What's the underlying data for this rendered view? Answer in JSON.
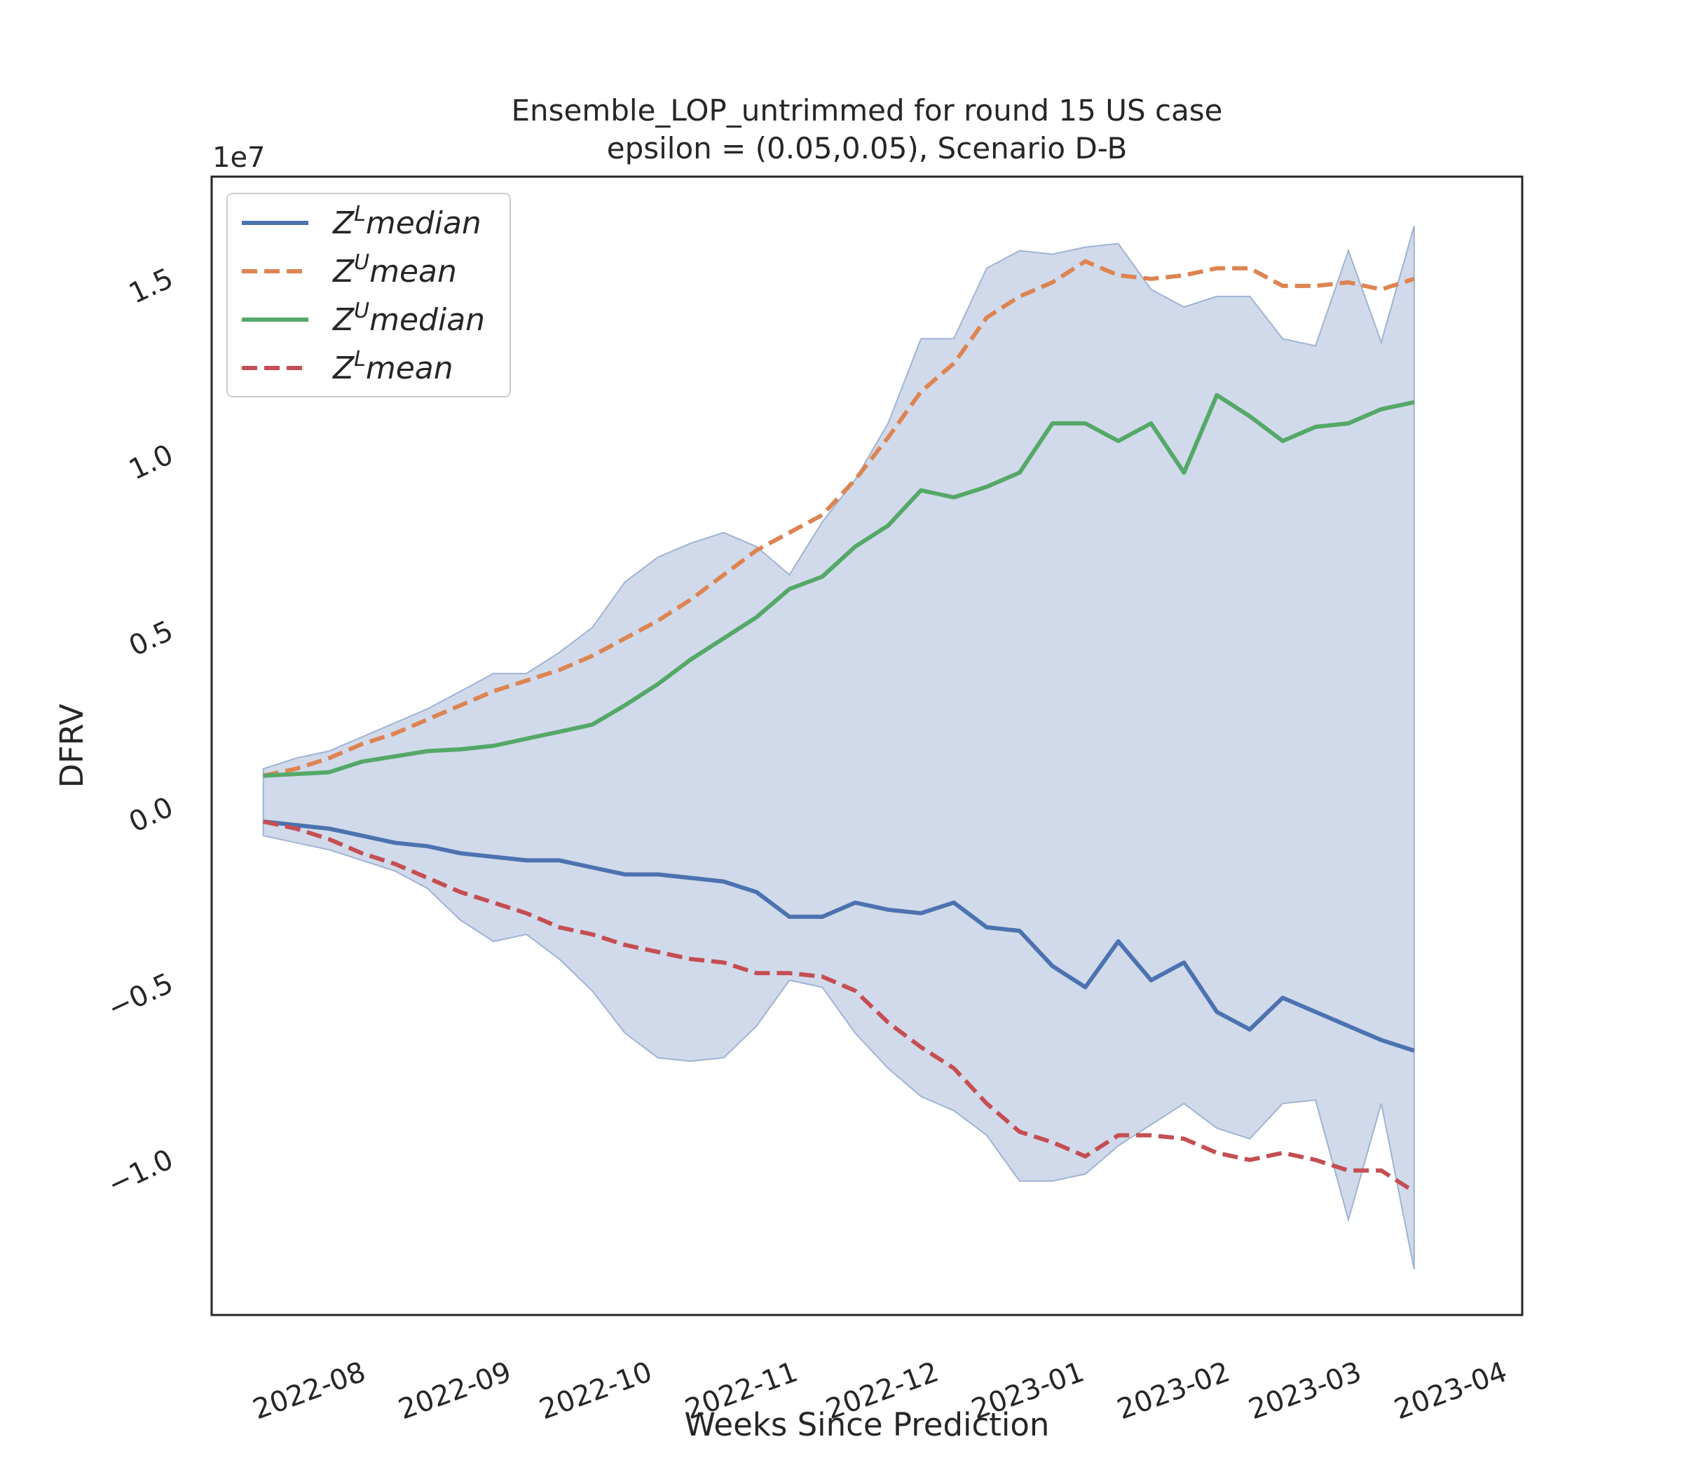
{
  "chart_data": {
    "type": "line",
    "title": "Ensemble_LOP_untrimmed for round 15 US  case",
    "subtitle": "epsilon = (0.05,0.05), Scenario D-B",
    "xlabel": "Weeks Since Prediction",
    "ylabel": "DFRV",
    "y_offset_label": "1e7",
    "x_tick_labels": [
      "2022-08",
      "2022-09",
      "2022-10",
      "2022-11",
      "2022-12",
      "2023-01",
      "2023-02",
      "2023-03",
      "2023-04"
    ],
    "x_ticks": [
      "2022-08-01",
      "2022-09-01",
      "2022-10-01",
      "2022-11-01",
      "2022-12-01",
      "2023-01-01",
      "2023-02-01",
      "2023-03-01",
      "2023-04-01"
    ],
    "y_tick_labels": [
      "−1.0",
      "−0.5",
      "0.0",
      "0.5",
      "1.0",
      "1.5"
    ],
    "y_ticks": [
      -1.0,
      -0.5,
      0.0,
      0.5,
      1.0,
      1.5
    ],
    "xlim": [
      "2022-07-06",
      "2023-04-11"
    ],
    "ylim": [
      -1.45,
      1.78
    ],
    "grid": false,
    "legend_position": "upper-left",
    "x": [
      "2022-07-17",
      "2022-07-24",
      "2022-07-31",
      "2022-08-07",
      "2022-08-14",
      "2022-08-21",
      "2022-08-28",
      "2022-09-04",
      "2022-09-11",
      "2022-09-18",
      "2022-09-25",
      "2022-10-02",
      "2022-10-09",
      "2022-10-16",
      "2022-10-23",
      "2022-10-30",
      "2022-11-06",
      "2022-11-13",
      "2022-11-20",
      "2022-11-27",
      "2022-12-04",
      "2022-12-11",
      "2022-12-18",
      "2022-12-25",
      "2023-01-01",
      "2023-01-08",
      "2023-01-15",
      "2023-01-22",
      "2023-01-29",
      "2023-02-05",
      "2023-02-12",
      "2023-02-19",
      "2023-02-26",
      "2023-03-05",
      "2023-03-12",
      "2023-03-19"
    ],
    "band": {
      "color": "#c2cde3",
      "edge_color": "#9fb3d3",
      "upper": [
        0.1,
        0.13,
        0.15,
        0.19,
        0.23,
        0.27,
        0.32,
        0.37,
        0.37,
        0.43,
        0.5,
        0.63,
        0.7,
        0.74,
        0.77,
        0.73,
        0.65,
        0.8,
        0.92,
        1.08,
        1.32,
        1.32,
        1.52,
        1.57,
        1.56,
        1.58,
        1.59,
        1.46,
        1.41,
        1.44,
        1.44,
        1.32,
        1.3,
        1.57,
        1.31,
        1.64
      ],
      "lower": [
        -0.09,
        -0.11,
        -0.13,
        -0.16,
        -0.19,
        -0.24,
        -0.33,
        -0.39,
        -0.37,
        -0.44,
        -0.53,
        -0.65,
        -0.72,
        -0.73,
        -0.72,
        -0.63,
        -0.5,
        -0.52,
        -0.65,
        -0.75,
        -0.83,
        -0.87,
        -0.94,
        -1.07,
        -1.07,
        -1.05,
        -0.97,
        -0.91,
        -0.85,
        -0.92,
        -0.95,
        -0.85,
        -0.84,
        -1.18,
        -0.85,
        -1.32
      ]
    },
    "series": [
      {
        "name": "$Z^L median$",
        "legend_base": "Z",
        "legend_sup": "L",
        "legend_rest": "median",
        "color": "#4c72b0",
        "dash": "solid",
        "values": [
          -0.05,
          -0.06,
          -0.07,
          -0.09,
          -0.11,
          -0.12,
          -0.14,
          -0.15,
          -0.16,
          -0.16,
          -0.18,
          -0.2,
          -0.2,
          -0.21,
          -0.22,
          -0.25,
          -0.32,
          -0.32,
          -0.28,
          -0.3,
          -0.31,
          -0.28,
          -0.35,
          -0.36,
          -0.46,
          -0.52,
          -0.39,
          -0.5,
          -0.45,
          -0.59,
          -0.64,
          -0.55,
          -0.59,
          -0.63,
          -0.67,
          -0.7
        ]
      },
      {
        "name": "$Z^U mean$",
        "legend_base": "Z",
        "legend_sup": "U",
        "legend_rest": "mean",
        "color": "#dd8452",
        "dash": "dashed",
        "values": [
          0.08,
          0.1,
          0.13,
          0.17,
          0.2,
          0.24,
          0.28,
          0.32,
          0.35,
          0.38,
          0.42,
          0.47,
          0.52,
          0.58,
          0.65,
          0.72,
          0.77,
          0.82,
          0.92,
          1.04,
          1.17,
          1.25,
          1.38,
          1.44,
          1.48,
          1.54,
          1.5,
          1.49,
          1.5,
          1.52,
          1.52,
          1.47,
          1.47,
          1.48,
          1.46,
          1.49
        ]
      },
      {
        "name": "$Z^U median$",
        "legend_base": "Z",
        "legend_sup": "U",
        "legend_rest": "median",
        "color": "#55a868",
        "dash": "solid",
        "values": [
          0.08,
          0.085,
          0.09,
          0.12,
          0.135,
          0.15,
          0.155,
          0.165,
          0.185,
          0.205,
          0.225,
          0.28,
          0.34,
          0.41,
          0.47,
          0.53,
          0.61,
          0.645,
          0.73,
          0.79,
          0.89,
          0.87,
          0.9,
          0.94,
          1.08,
          1.08,
          1.03,
          1.08,
          0.94,
          1.16,
          1.1,
          1.03,
          1.07,
          1.08,
          1.12,
          1.14
        ]
      },
      {
        "name": "$Z^L mean$",
        "legend_base": "Z",
        "legend_sup": "L",
        "legend_rest": "mean",
        "color": "#c44e52",
        "dash": "dashed",
        "values": [
          -0.05,
          -0.07,
          -0.1,
          -0.14,
          -0.17,
          -0.21,
          -0.25,
          -0.28,
          -0.31,
          -0.35,
          -0.37,
          -0.4,
          -0.42,
          -0.44,
          -0.45,
          -0.48,
          -0.48,
          -0.49,
          -0.53,
          -0.62,
          -0.69,
          -0.75,
          -0.85,
          -0.93,
          -0.96,
          -1.0,
          -0.94,
          -0.94,
          -0.95,
          -0.99,
          -1.01,
          -0.99,
          -1.01,
          -1.04,
          -1.04,
          -1.1
        ]
      }
    ]
  }
}
